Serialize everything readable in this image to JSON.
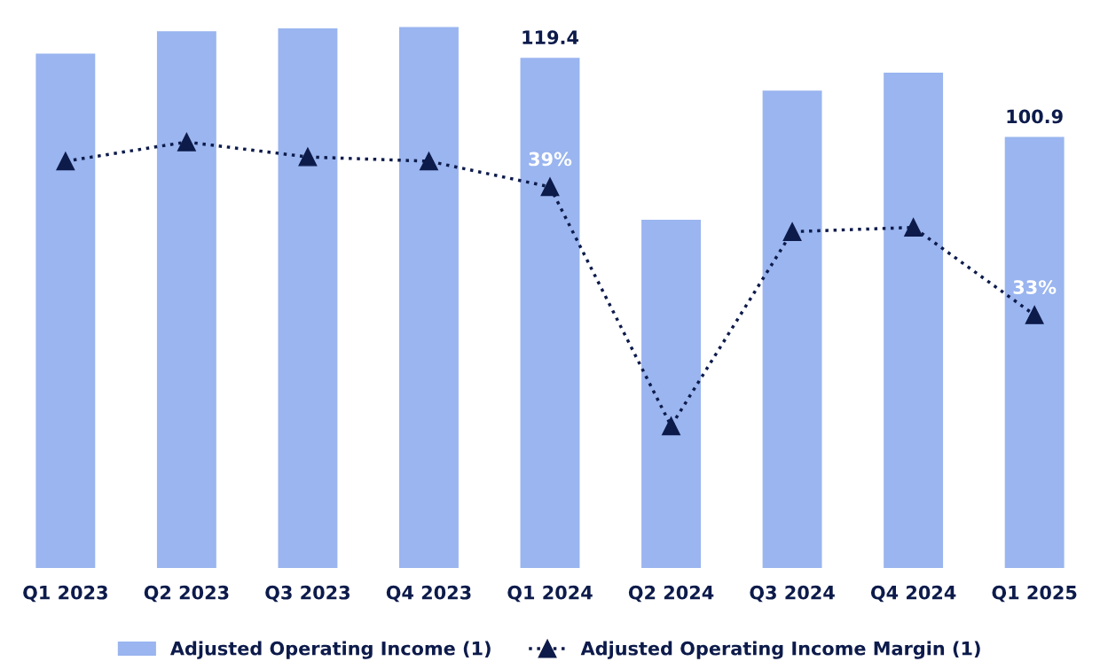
{
  "chart_data": {
    "type": "bar",
    "categories": [
      "Q1 2023",
      "Q2 2023",
      "Q3 2023",
      "Q4 2023",
      "Q1 2024",
      "Q2 2024",
      "Q3 2024",
      "Q4 2024",
      "Q1 2025"
    ],
    "series": [
      {
        "name": "Adjusted Operating Income (1)",
        "color": "#9ab5ef",
        "values": [
          120.4,
          125.6,
          126.3,
          126.6,
          119.4,
          81.5,
          111.7,
          115.9,
          100.9
        ],
        "value_labels": [
          null,
          null,
          null,
          null,
          "119.4",
          null,
          null,
          null,
          "100.9"
        ]
      },
      {
        "name": "Adjusted Operating Income Margin (1)",
        "type": "line",
        "axis": "y2",
        "color": "#0d1b4b",
        "marker": "triangle",
        "line_style": "dotted",
        "values": [
          40.2,
          41.1,
          40.4,
          40.2,
          39,
          27.8,
          36.9,
          37.1,
          33
        ],
        "value_labels": [
          null,
          null,
          null,
          null,
          "39%",
          null,
          null,
          null,
          "33%"
        ]
      }
    ],
    "tick_labels": "x",
    "grid": false,
    "legend": "bottom"
  }
}
